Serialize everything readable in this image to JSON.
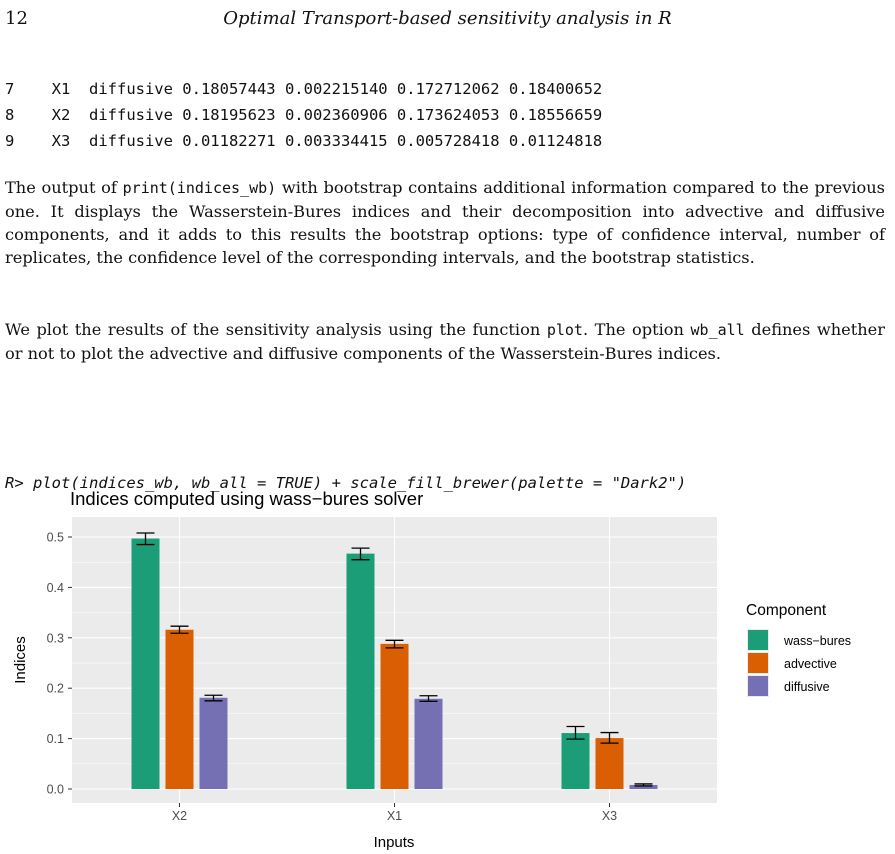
{
  "header": {
    "page_number": "12",
    "running_title": "Optimal Transport-based sensitivity analysis in R"
  },
  "code_rows": [
    "7    X1  diffusive 0.18057443 0.002215140 0.172712062 0.18400652",
    "8    X2  diffusive 0.18195623 0.002360906 0.173624053 0.18556659",
    "9    X3  diffusive 0.01182271 0.003334415 0.005728418 0.01124818"
  ],
  "para1": {
    "pre": "The output of ",
    "code": "print(indices_wb)",
    "post": " with bootstrap contains additional information compared to the previous one. It displays the Wasserstein-Bures indices and their decomposition into advective and diffusive components, and it adds to this results the bootstrap options: type of confidence interval, number of replicates, the confidence level of the corresponding intervals, and the bootstrap statistics."
  },
  "para2": {
    "pre": "We plot the results of the sensitivity analysis using the function ",
    "code1": "plot",
    "mid": ". The option ",
    "code2": "wb_all",
    "post": " defines whether or not to plot the advective and diffusive components of the Wasserstein-Bures indices."
  },
  "r_command": "R> plot(indices_wb, wb_all = TRUE) + scale_fill_brewer(palette = \"Dark2\")",
  "chart_data": {
    "type": "bar",
    "title": "Indices computed using wass−bures solver",
    "xlabel": "Inputs",
    "ylabel": "Indices",
    "categories": [
      "X2",
      "X1",
      "X3"
    ],
    "ylim": [
      0,
      0.52
    ],
    "yticks": [
      "0.0",
      "0.1",
      "0.2",
      "0.3",
      "0.4",
      "0.5"
    ],
    "legend_title": "Component",
    "legend_position": "right",
    "grid": true,
    "panel_background": "#ebebeb",
    "series": [
      {
        "name": "wass−bures",
        "color": "#1b9e77",
        "values": [
          0.497,
          0.467,
          0.111
        ],
        "err_low": [
          0.485,
          0.455,
          0.099
        ],
        "err_high": [
          0.508,
          0.478,
          0.124
        ]
      },
      {
        "name": "advective",
        "color": "#d95f02",
        "values": [
          0.316,
          0.288,
          0.101
        ],
        "err_low": [
          0.309,
          0.28,
          0.091
        ],
        "err_high": [
          0.323,
          0.295,
          0.112
        ]
      },
      {
        "name": "diffusive",
        "color": "#7570b3",
        "values": [
          0.181,
          0.179,
          0.008
        ],
        "err_low": [
          0.175,
          0.174,
          0.006
        ],
        "err_high": [
          0.186,
          0.185,
          0.01
        ]
      }
    ]
  }
}
